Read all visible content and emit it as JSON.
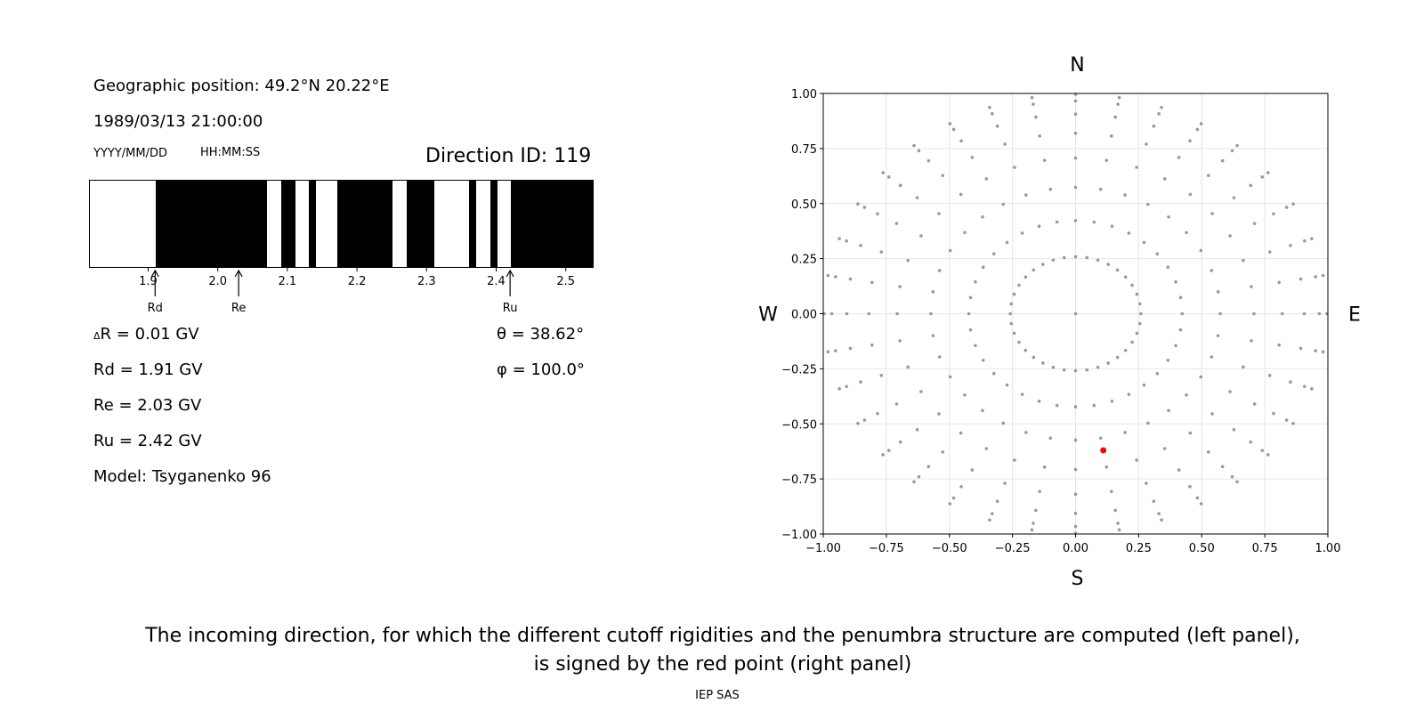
{
  "left_panel": {
    "position_label": "Geographic position: 49.2°N 20.22°E",
    "datetime": "1989/03/13 21:00:00",
    "date_format": "YYYY/MM/DD",
    "time_format": "HH:MM:SS",
    "direction_id": "Direction ID: 119",
    "delta_r": "R = 0.01 GV",
    "delta_symbol": "Δ",
    "rd_text": "Rd = 1.91 GV",
    "re_text": "Re = 2.03 GV",
    "ru_text": "Ru = 2.42 GV",
    "model": "Model: Tsyganenko 96",
    "theta": "θ = 38.62°",
    "phi": "φ = 100.0°"
  },
  "penumbra": {
    "x_range": [
      1.815,
      2.54
    ],
    "ticks": [
      "1.9",
      "2.0",
      "2.1",
      "2.2",
      "2.3",
      "2.4",
      "2.5"
    ],
    "tick_values": [
      1.9,
      2.0,
      2.1,
      2.2,
      2.3,
      2.4,
      2.5
    ],
    "black_bands": [
      [
        1.91,
        2.07
      ],
      [
        2.09,
        2.11
      ],
      [
        2.13,
        2.14
      ],
      [
        2.17,
        2.25
      ],
      [
        2.27,
        2.31
      ],
      [
        2.36,
        2.37
      ],
      [
        2.39,
        2.4
      ],
      [
        2.42,
        2.54
      ]
    ],
    "markers": [
      {
        "label": "Rd",
        "value": 1.91
      },
      {
        "label": "Re",
        "value": 2.03
      },
      {
        "label": "Ru",
        "value": 2.42
      }
    ]
  },
  "chart_data": {
    "type": "scatter",
    "xlim": [
      -1.0,
      1.0
    ],
    "ylim": [
      -1.0,
      1.0
    ],
    "xticks": [
      "−1.00",
      "−0.75",
      "−0.50",
      "−0.25",
      "0.00",
      "0.25",
      "0.50",
      "0.75",
      "1.00"
    ],
    "yticks": [
      "1.00",
      "0.75",
      "0.50",
      "0.25",
      "0.00",
      "−0.25",
      "−0.50",
      "−0.75",
      "−1.00"
    ],
    "tick_values": [
      -1.0,
      -0.75,
      -0.5,
      -0.25,
      0.0,
      0.25,
      0.5,
      0.75,
      1.0
    ],
    "grid": true,
    "compass": {
      "north": "N",
      "south": "S",
      "west": "W",
      "east": "E"
    },
    "direction_grid": {
      "zenith_angles_deg": [
        0,
        15,
        25,
        35,
        45,
        55,
        65,
        75,
        85
      ],
      "azimuth_step_deg": 10,
      "projection_radius": "sin(zenith)",
      "color": "#999999"
    },
    "highlight": {
      "x": 0.11,
      "y": -0.62,
      "color": "#ff0000"
    }
  },
  "caption": {
    "line1": "The incoming direction, for which the different cutoff rigidities and the penumbra structure are computed (left panel),",
    "line2": "is signed by the red point (right panel)",
    "credit": "IEP SAS"
  }
}
